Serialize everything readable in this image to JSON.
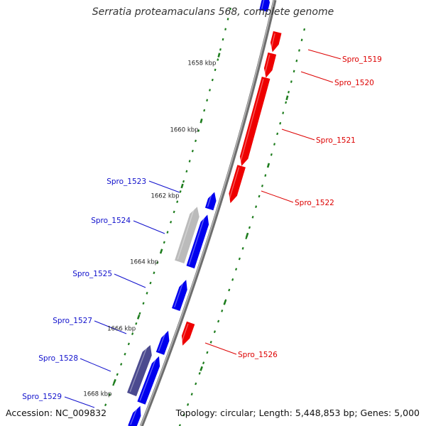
{
  "title": "Serratia proteamaculans 568, complete genome",
  "footer": {
    "accession": "Accession: NC_009832",
    "summary": "Topology: circular; Length: 5,448,853 bp; Genes: 5,000"
  },
  "colors": {
    "background": "#ffffff",
    "backbone": "#8a8a8a",
    "forward_gene": "#0000ee",
    "reverse_gene": "#ee0000",
    "pseudo_gene": "#bbbbbb",
    "rna_gene": "#4b4a8f",
    "ticks": "#1e7d1e",
    "forward_label": "#1010cc",
    "reverse_label": "#dd0000"
  },
  "scale_labels": [
    "1658 kbp",
    "1660 kbp",
    "1662 kbp",
    "1664 kbp",
    "1666 kbp",
    "1668 kbp"
  ],
  "genes": [
    {
      "name": "",
      "strand": "forward",
      "type": "cds"
    },
    {
      "name": "Spro_1519",
      "strand": "reverse",
      "type": "cds"
    },
    {
      "name": "Spro_1520",
      "strand": "reverse",
      "type": "cds"
    },
    {
      "name": "Spro_1521",
      "strand": "reverse",
      "type": "cds"
    },
    {
      "name": "Spro_1522",
      "strand": "reverse",
      "type": "cds"
    },
    {
      "name": "Spro_1523",
      "strand": "forward",
      "type": "cds"
    },
    {
      "name": "Spro_1524",
      "strand": "forward",
      "type": "pair"
    },
    {
      "name": "Spro_1525",
      "strand": "forward",
      "type": "cds"
    },
    {
      "name": "Spro_1526",
      "strand": "reverse",
      "type": "cds"
    },
    {
      "name": "Spro_1527",
      "strand": "forward",
      "type": "cds"
    },
    {
      "name": "Spro_1528",
      "strand": "forward",
      "type": "pair-rna"
    },
    {
      "name": "Spro_1529",
      "strand": "forward",
      "type": "cds"
    }
  ]
}
